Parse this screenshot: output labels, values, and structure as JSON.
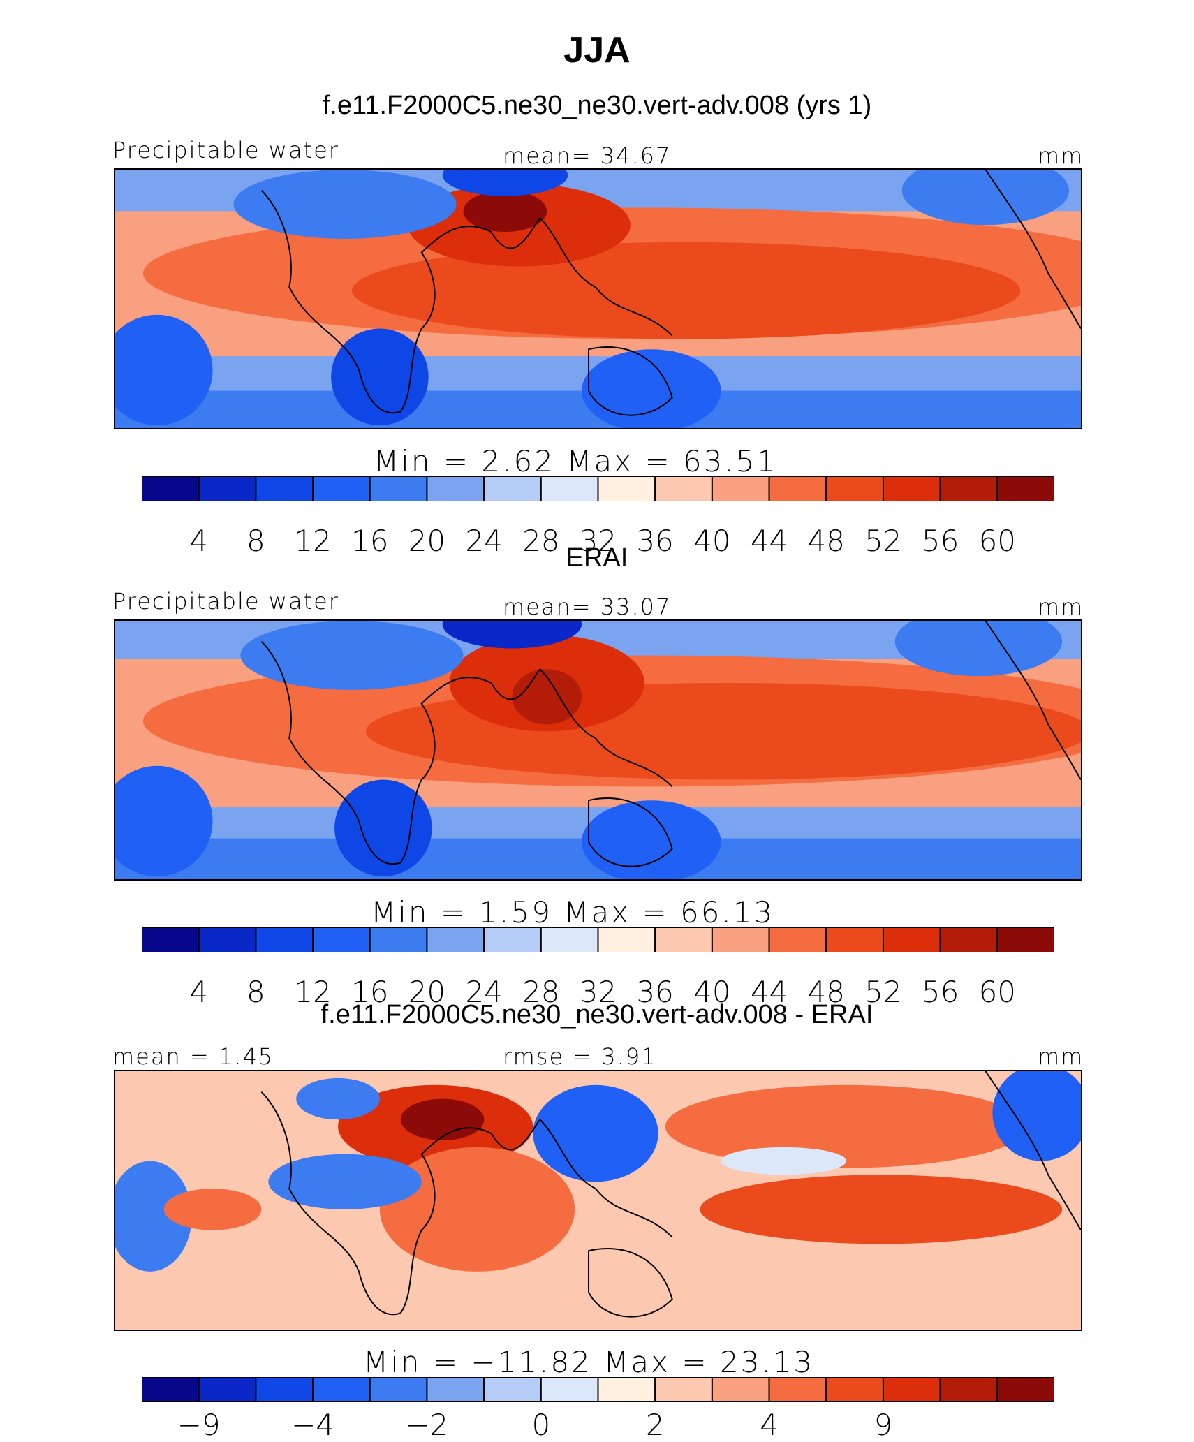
{
  "title": "JJA",
  "colors": [
    "#08088c",
    "#0a28c8",
    "#0f46e6",
    "#2060f4",
    "#3c7cf0",
    "#7aa4f0",
    "#b4ccf6",
    "#dce8fa",
    "#fff0e0",
    "#fcc8b0",
    "#f8a080",
    "#f46c40",
    "#ea4a1c",
    "#dc2e0a",
    "#b41c0a",
    "#8c0a08"
  ],
  "panels": [
    {
      "id": "model",
      "heading": "f.e11.F2000C5.ne30_ne30.vert-adv.008 (yrs 1)",
      "left_label": "Precipitable water",
      "center_label": "mean=   34.67",
      "right_label": "mm",
      "minmax": "Min  =     2.62  Max  =    63.51",
      "ticks": [
        "4",
        "8",
        "12",
        "16",
        "20",
        "24",
        "28",
        "32",
        "36",
        "40",
        "44",
        "48",
        "52",
        "56",
        "60"
      ]
    },
    {
      "id": "obs",
      "heading": "ERAI",
      "left_label": "Precipitable water",
      "center_label": "mean=   33.07",
      "right_label": "mm",
      "minmax": "Min  =     1.59  Max  =    66.13",
      "ticks": [
        "4",
        "8",
        "12",
        "16",
        "20",
        "24",
        "28",
        "32",
        "36",
        "40",
        "44",
        "48",
        "52",
        "56",
        "60"
      ]
    },
    {
      "id": "diff",
      "heading": "f.e11.F2000C5.ne30_ne30.vert-adv.008 - ERAI",
      "left_label": "mean  =     1.45",
      "center_label": "rmse  =     3.91",
      "right_label": "mm",
      "minmax": "Min  = −11.82  Max  =    23.13",
      "ticks": [
        "−9",
        "",
        "−4",
        "",
        "−2",
        "",
        "0",
        "",
        "2",
        "",
        "4",
        "",
        "9",
        "",
        ""
      ]
    }
  ]
}
